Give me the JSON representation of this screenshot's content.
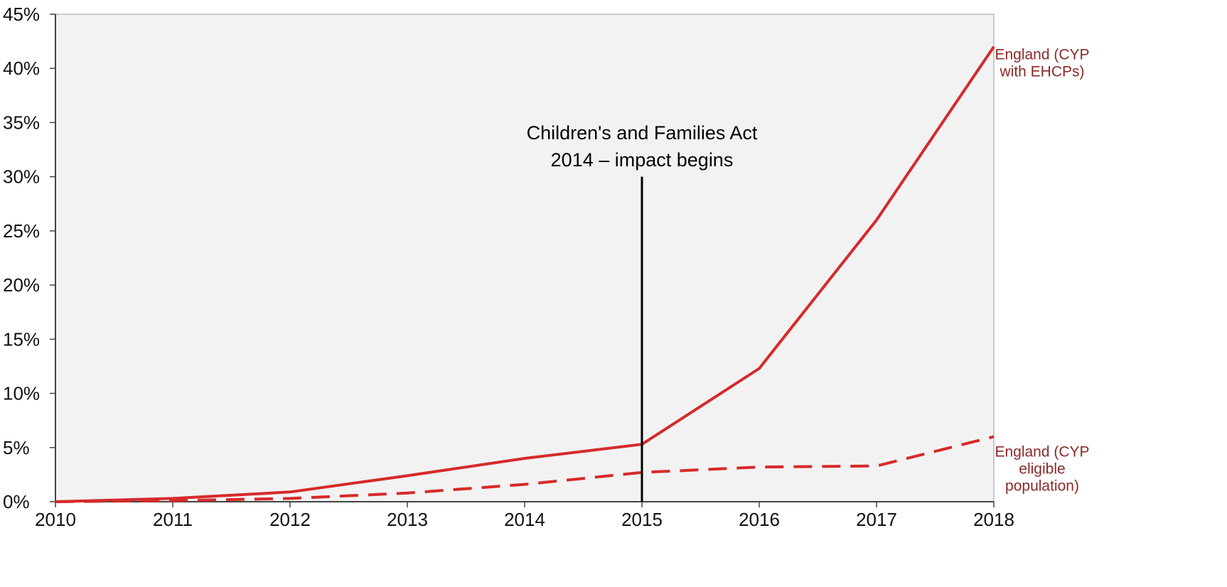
{
  "chart_data": {
    "type": "line",
    "title": "",
    "xlabel": "",
    "ylabel": "",
    "x": [
      2010,
      2011,
      2012,
      2013,
      2014,
      2015,
      2016,
      2017,
      2018
    ],
    "x_tick_labels": [
      "2010",
      "2011",
      "2012",
      "2013",
      "2014",
      "2015",
      "2016",
      "2017",
      "2018"
    ],
    "xlim": [
      2010,
      2018
    ],
    "ylim": [
      0,
      45
    ],
    "y_ticks": [
      0,
      5,
      10,
      15,
      20,
      25,
      30,
      35,
      40,
      45
    ],
    "y_tick_labels": [
      "0%",
      "5%",
      "10%",
      "15%",
      "20%",
      "25%",
      "30%",
      "35%",
      "40%",
      "45%"
    ],
    "grid": false,
    "plot_background": "#f2f2f2",
    "series": [
      {
        "key": "ehcp",
        "label_lines": [
          "England (CYP",
          "with EHCPs)"
        ],
        "line_style": "solid",
        "color": "#d62a2a",
        "values": [
          0,
          0.3,
          0.9,
          2.4,
          4.0,
          5.3,
          12.3,
          26.0,
          42.0
        ]
      },
      {
        "key": "eligible",
        "label_lines": [
          "England (CYP",
          "eligible",
          "population)"
        ],
        "line_style": "dashed",
        "color": "#d62a2a",
        "values": [
          0,
          0.1,
          0.3,
          0.8,
          1.6,
          2.7,
          3.2,
          3.3,
          6.0
        ]
      }
    ],
    "annotation": {
      "x": 2015,
      "y_top": 30,
      "text_lines": [
        "Children's and Families Act",
        "2014 – impact begins"
      ],
      "color": "#000000"
    }
  }
}
